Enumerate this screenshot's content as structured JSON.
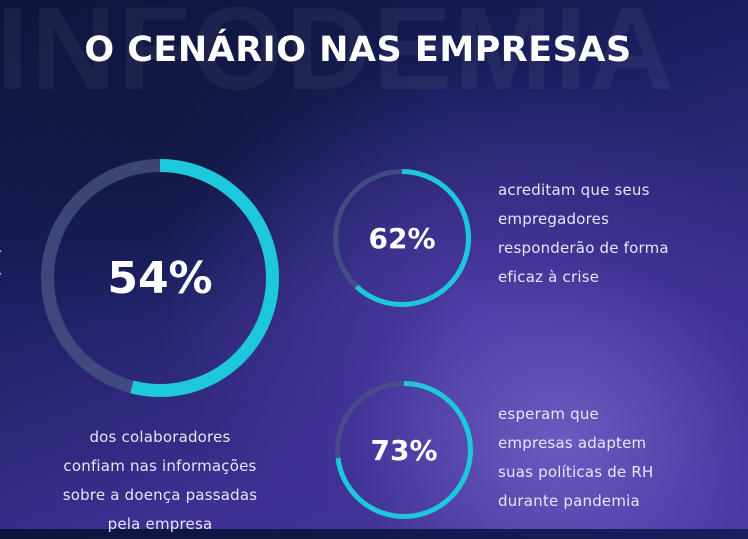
{
  "watermark": "INFODEMIA",
  "title": "O CENÁRIO NAS EMPRESAS",
  "colors": {
    "accent": "#1ec8dc",
    "track": "#4a5684",
    "text": "#ffffff"
  },
  "stats": [
    {
      "value": "54%",
      "fraction": 0.54,
      "description": [
        "dos colaboradores",
        "confiam nas informações",
        "sobre a doença passadas",
        "pela empresa"
      ]
    },
    {
      "value": "62%",
      "fraction": 0.62,
      "description": [
        "acreditam que seus",
        "empregadores",
        "responderão de forma",
        "eficaz à crise"
      ]
    },
    {
      "value": "73%",
      "fraction": 0.73,
      "description": [
        "esperam que",
        "empresas adaptem",
        "suas políticas de RH",
        "durante pandemia"
      ]
    }
  ],
  "icons": {
    "edge": "chevron-left-icon"
  }
}
